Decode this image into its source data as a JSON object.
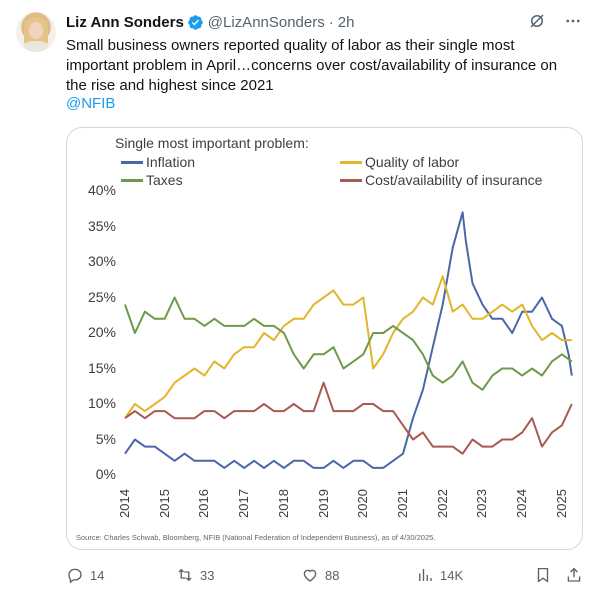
{
  "tweet": {
    "author_name": "Liz Ann Sonders",
    "handle": "@LizAnnSonders",
    "separator": "·",
    "time": "2h",
    "text_lines": [
      "Small business owners reported quality of labor as their single most",
      "important problem in April…concerns over cost/availability of insurance on",
      "the rise and highest since 2021"
    ],
    "mention": "@NFIB",
    "icons": {
      "verified": "verified-badge-icon",
      "grok": "grok-icon",
      "more": "more-icon"
    }
  },
  "actions": {
    "replies": "14",
    "reposts": "33",
    "likes": "88",
    "views": "14K",
    "icons": [
      "reply-icon",
      "repost-icon",
      "like-icon",
      "views-icon",
      "bookmark-icon",
      "share-icon"
    ]
  },
  "colors": {
    "link": "#1d9bf0",
    "verified": "#1d9bf0",
    "muted": "#536471",
    "inflation": "#4a67a8",
    "quality": "#e3b52a",
    "taxes": "#6f9a4a",
    "insurance": "#a85a4f"
  },
  "chart_data": {
    "type": "line",
    "title": "Single most important problem:",
    "source": "Source: Charles Schwab, Bloomberg, NFIB (National Federation of Independent Business), as of 4/30/2025.",
    "ylim": [
      0,
      40
    ],
    "yticks": [
      "0%",
      "5%",
      "10%",
      "15%",
      "20%",
      "25%",
      "30%",
      "35%",
      "40%"
    ],
    "xlim": [
      2014,
      2025.33
    ],
    "xticks": [
      "2014",
      "2015",
      "2016",
      "2017",
      "2018",
      "2019",
      "2020",
      "2021",
      "2022",
      "2023",
      "2024",
      "2025"
    ],
    "grid": false,
    "legend_position": "top",
    "series": [
      {
        "name": "Inflation",
        "color_key": "inflation",
        "x": [
          2014.0,
          2014.25,
          2014.5,
          2014.75,
          2015.0,
          2015.25,
          2015.5,
          2015.75,
          2016.0,
          2016.25,
          2016.5,
          2016.75,
          2017.0,
          2017.25,
          2017.5,
          2017.75,
          2018.0,
          2018.25,
          2018.5,
          2018.75,
          2019.0,
          2019.25,
          2019.5,
          2019.75,
          2020.0,
          2020.25,
          2020.5,
          2020.75,
          2021.0,
          2021.25,
          2021.5,
          2021.75,
          2022.0,
          2022.25,
          2022.5,
          2022.58,
          2022.75,
          2023.0,
          2023.25,
          2023.5,
          2023.75,
          2024.0,
          2024.25,
          2024.5,
          2024.75,
          2025.0,
          2025.17,
          2025.25
        ],
        "values": [
          3,
          5,
          4,
          4,
          3,
          2,
          3,
          2,
          2,
          2,
          1,
          2,
          1,
          2,
          1,
          2,
          1,
          2,
          2,
          1,
          1,
          2,
          1,
          2,
          2,
          1,
          1,
          2,
          3,
          8,
          12,
          18,
          24,
          32,
          37,
          33,
          27,
          24,
          22,
          22,
          20,
          23,
          23,
          25,
          22,
          21,
          17,
          14
        ]
      },
      {
        "name": "Quality of labor",
        "color_key": "quality",
        "x": [
          2014.0,
          2014.25,
          2014.5,
          2014.75,
          2015.0,
          2015.25,
          2015.5,
          2015.75,
          2016.0,
          2016.25,
          2016.5,
          2016.75,
          2017.0,
          2017.25,
          2017.5,
          2017.75,
          2018.0,
          2018.25,
          2018.5,
          2018.75,
          2019.0,
          2019.25,
          2019.5,
          2019.75,
          2020.0,
          2020.25,
          2020.5,
          2020.75,
          2021.0,
          2021.25,
          2021.5,
          2021.75,
          2022.0,
          2022.25,
          2022.5,
          2022.75,
          2023.0,
          2023.25,
          2023.5,
          2023.75,
          2024.0,
          2024.25,
          2024.5,
          2024.75,
          2025.0,
          2025.25
        ],
        "values": [
          8,
          10,
          9,
          10,
          11,
          13,
          14,
          15,
          14,
          16,
          15,
          17,
          18,
          18,
          20,
          19,
          21,
          22,
          22,
          24,
          25,
          26,
          24,
          24,
          25,
          15,
          17,
          20,
          22,
          23,
          25,
          24,
          28,
          23,
          24,
          22,
          22,
          23,
          24,
          23,
          24,
          21,
          19,
          20,
          19,
          19
        ]
      },
      {
        "name": "Taxes",
        "color_key": "taxes",
        "x": [
          2014.0,
          2014.25,
          2014.5,
          2014.75,
          2015.0,
          2015.25,
          2015.5,
          2015.75,
          2016.0,
          2016.25,
          2016.5,
          2016.75,
          2017.0,
          2017.25,
          2017.5,
          2017.75,
          2018.0,
          2018.25,
          2018.5,
          2018.75,
          2019.0,
          2019.25,
          2019.5,
          2019.75,
          2020.0,
          2020.25,
          2020.5,
          2020.75,
          2021.0,
          2021.25,
          2021.5,
          2021.75,
          2022.0,
          2022.25,
          2022.5,
          2022.75,
          2023.0,
          2023.25,
          2023.5,
          2023.75,
          2024.0,
          2024.25,
          2024.5,
          2024.75,
          2025.0,
          2025.25
        ],
        "values": [
          24,
          20,
          23,
          22,
          22,
          25,
          22,
          22,
          21,
          22,
          21,
          21,
          21,
          22,
          21,
          21,
          20,
          17,
          15,
          17,
          17,
          18,
          15,
          16,
          17,
          20,
          20,
          21,
          20,
          19,
          17,
          14,
          13,
          14,
          16,
          13,
          12,
          14,
          15,
          15,
          14,
          15,
          14,
          16,
          17,
          16
        ]
      },
      {
        "name": "Cost/availability of insurance",
        "color_key": "insurance",
        "x": [
          2014.0,
          2014.25,
          2014.5,
          2014.75,
          2015.0,
          2015.25,
          2015.5,
          2015.75,
          2016.0,
          2016.25,
          2016.5,
          2016.75,
          2017.0,
          2017.25,
          2017.5,
          2017.75,
          2018.0,
          2018.25,
          2018.5,
          2018.75,
          2019.0,
          2019.25,
          2019.5,
          2019.75,
          2020.0,
          2020.25,
          2020.5,
          2020.75,
          2021.0,
          2021.25,
          2021.5,
          2021.75,
          2022.0,
          2022.25,
          2022.5,
          2022.75,
          2023.0,
          2023.25,
          2023.5,
          2023.75,
          2024.0,
          2024.25,
          2024.5,
          2024.75,
          2025.0,
          2025.25
        ],
        "values": [
          8,
          9,
          8,
          9,
          9,
          8,
          8,
          8,
          9,
          9,
          8,
          9,
          9,
          9,
          10,
          9,
          9,
          10,
          9,
          9,
          13,
          9,
          9,
          9,
          10,
          10,
          9,
          9,
          7,
          5,
          6,
          4,
          4,
          4,
          3,
          5,
          4,
          4,
          5,
          5,
          6,
          8,
          4,
          6,
          7,
          10
        ]
      }
    ]
  }
}
